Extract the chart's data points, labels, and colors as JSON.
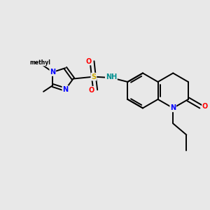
{
  "background_color": "#e8e8e8",
  "atom_colors": {
    "N": "#0000ff",
    "O": "#ff0000",
    "S": "#ccaa00",
    "H": "#009090",
    "C": "#000000"
  },
  "bond_color": "#000000",
  "figsize": [
    3.0,
    3.0
  ],
  "dpi": 100
}
